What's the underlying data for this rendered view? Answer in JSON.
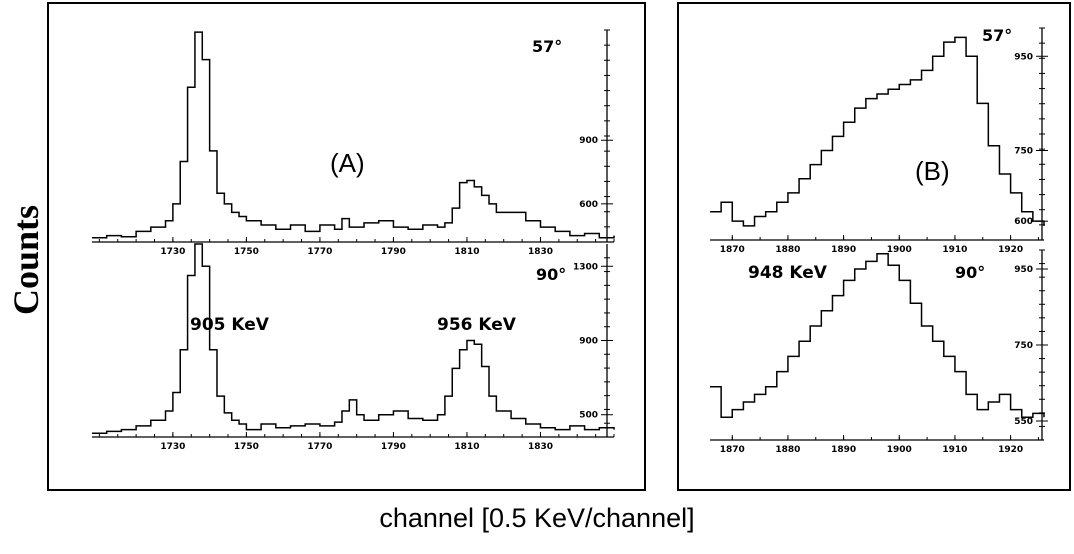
{
  "ylabel": "Counts",
  "xlabel": "channel [0.5 KeV/channel]",
  "chart_data": [
    {
      "type": "line",
      "panel": "(A)",
      "angle": "57°",
      "xlim": [
        1708,
        1850
      ],
      "ylim": [
        420,
        1420
      ],
      "x_ticks": [
        1730,
        1750,
        1770,
        1790,
        1810,
        1830
      ],
      "y_ticks": [
        600,
        900
      ],
      "x": [
        1708,
        1712,
        1716,
        1720,
        1724,
        1728,
        1730,
        1732,
        1734,
        1736,
        1738,
        1740,
        1742,
        1744,
        1746,
        1748,
        1750,
        1754,
        1758,
        1762,
        1766,
        1770,
        1774,
        1776,
        1778,
        1782,
        1786,
        1790,
        1794,
        1798,
        1802,
        1804,
        1806,
        1808,
        1810,
        1812,
        1814,
        1816,
        1818,
        1822,
        1826,
        1830,
        1834,
        1838,
        1842,
        1846,
        1850
      ],
      "values": [
        440,
        450,
        445,
        470,
        490,
        520,
        600,
        800,
        1150,
        1410,
        1280,
        850,
        650,
        600,
        560,
        540,
        520,
        500,
        480,
        500,
        470,
        500,
        480,
        530,
        490,
        510,
        520,
        490,
        480,
        500,
        490,
        510,
        580,
        700,
        710,
        680,
        640,
        600,
        560,
        560,
        520,
        490,
        470,
        450,
        460,
        440,
        450
      ]
    },
    {
      "type": "line",
      "panel": "(A)",
      "angle": "90°",
      "xlim": [
        1708,
        1850
      ],
      "ylim": [
        380,
        1420
      ],
      "x_ticks": [
        1730,
        1750,
        1770,
        1790,
        1810,
        1830
      ],
      "y_ticks": [
        500,
        900,
        1300
      ],
      "annotations": [
        "905 KeV",
        "956 KeV"
      ],
      "x": [
        1708,
        1712,
        1716,
        1720,
        1724,
        1728,
        1730,
        1732,
        1734,
        1736,
        1738,
        1740,
        1742,
        1744,
        1746,
        1748,
        1750,
        1754,
        1758,
        1762,
        1766,
        1770,
        1774,
        1776,
        1778,
        1780,
        1782,
        1786,
        1790,
        1794,
        1798,
        1802,
        1804,
        1806,
        1808,
        1810,
        1812,
        1814,
        1816,
        1818,
        1822,
        1826,
        1830,
        1834,
        1838,
        1842,
        1846,
        1850
      ],
      "values": [
        400,
        410,
        420,
        440,
        470,
        520,
        620,
        850,
        1250,
        1420,
        1300,
        850,
        600,
        510,
        470,
        450,
        420,
        450,
        430,
        440,
        450,
        440,
        460,
        520,
        580,
        500,
        470,
        500,
        520,
        480,
        470,
        500,
        600,
        750,
        850,
        900,
        880,
        760,
        600,
        520,
        480,
        450,
        430,
        420,
        440,
        420,
        430,
        420
      ]
    },
    {
      "type": "line",
      "panel": "(B)",
      "angle": "57°",
      "xlim": [
        1866,
        1926
      ],
      "ylim": [
        560,
        1010
      ],
      "x_ticks": [
        1870,
        1880,
        1890,
        1900,
        1910,
        1920
      ],
      "y_ticks": [
        600,
        750,
        950
      ],
      "x": [
        1866,
        1868,
        1870,
        1872,
        1874,
        1876,
        1878,
        1880,
        1882,
        1884,
        1886,
        1888,
        1890,
        1892,
        1894,
        1896,
        1898,
        1900,
        1902,
        1904,
        1906,
        1908,
        1910,
        1912,
        1914,
        1916,
        1918,
        1920,
        1922,
        1924,
        1926
      ],
      "values": [
        620,
        640,
        600,
        590,
        610,
        620,
        640,
        660,
        690,
        720,
        750,
        780,
        810,
        840,
        860,
        870,
        880,
        890,
        900,
        920,
        950,
        980,
        990,
        950,
        850,
        760,
        700,
        660,
        620,
        600,
        590
      ]
    },
    {
      "type": "line",
      "panel": "(B)",
      "angle": "90°",
      "xlim": [
        1866,
        1926
      ],
      "ylim": [
        500,
        1000
      ],
      "x_ticks": [
        1870,
        1880,
        1890,
        1900,
        1910,
        1920
      ],
      "y_ticks": [
        550,
        750,
        950
      ],
      "annotations": [
        "948 KeV"
      ],
      "x": [
        1866,
        1868,
        1870,
        1872,
        1874,
        1876,
        1878,
        1880,
        1882,
        1884,
        1886,
        1888,
        1890,
        1892,
        1894,
        1896,
        1898,
        1900,
        1902,
        1904,
        1906,
        1908,
        1910,
        1912,
        1914,
        1916,
        1918,
        1920,
        1922,
        1924,
        1926
      ],
      "values": [
        640,
        560,
        580,
        600,
        620,
        640,
        680,
        720,
        760,
        800,
        840,
        880,
        920,
        950,
        970,
        990,
        960,
        920,
        860,
        800,
        760,
        720,
        680,
        620,
        580,
        600,
        620,
        580,
        560,
        570,
        560
      ]
    }
  ]
}
